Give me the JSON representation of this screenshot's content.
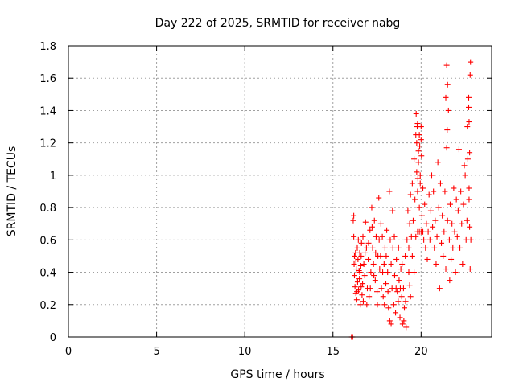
{
  "chart_data": {
    "type": "scatter",
    "title": "Day 222 of 2025, SRMTID for receiver nabg",
    "xlabel": "GPS time / hours",
    "ylabel": "SRMTID / TECUs",
    "xlim": [
      0,
      24
    ],
    "ylim": [
      0,
      1.8
    ],
    "x_ticks": [
      0,
      5,
      10,
      15,
      20
    ],
    "x_tick_labels": [
      "0",
      "5",
      "10",
      "15",
      "20"
    ],
    "y_ticks": [
      0,
      0.2,
      0.4,
      0.6,
      0.8,
      1.0,
      1.2,
      1.4,
      1.6,
      1.8
    ],
    "y_tick_labels": [
      "0",
      "0.2",
      "0.4",
      "0.6",
      "0.8",
      "1",
      "1.2",
      "1.4",
      "1.6",
      "1.8"
    ],
    "grid": true,
    "marker": "plus",
    "marker_color": "#ff0000",
    "points": [
      [
        16.05,
        0.0
      ],
      [
        16.08,
        0.0
      ],
      [
        16.12,
        0.0
      ],
      [
        16.15,
        0.72
      ],
      [
        16.18,
        0.62
      ],
      [
        16.2,
        0.45
      ],
      [
        16.22,
        0.38
      ],
      [
        16.25,
        0.31
      ],
      [
        16.28,
        0.52
      ],
      [
        16.3,
        0.27
      ],
      [
        16.32,
        0.42
      ],
      [
        16.35,
        0.23
      ],
      [
        16.38,
        0.55
      ],
      [
        16.4,
        0.34
      ],
      [
        16.42,
        0.48
      ],
      [
        16.45,
        0.29
      ],
      [
        16.48,
        0.41
      ],
      [
        16.5,
        0.36
      ],
      [
        16.52,
        0.52
      ],
      [
        16.55,
        0.2
      ],
      [
        16.58,
        0.44
      ],
      [
        16.6,
        0.31
      ],
      [
        16.62,
        0.58
      ],
      [
        16.65,
        0.26
      ],
      [
        16.18,
        0.75
      ],
      [
        16.22,
        0.5
      ],
      [
        16.3,
        0.47
      ],
      [
        16.36,
        0.28
      ],
      [
        16.44,
        0.6
      ],
      [
        16.52,
        0.4
      ],
      [
        16.6,
        0.5
      ],
      [
        16.68,
        0.33
      ],
      [
        16.7,
        0.62
      ],
      [
        16.75,
        0.45
      ],
      [
        16.8,
        0.38
      ],
      [
        16.85,
        0.71
      ],
      [
        16.9,
        0.55
      ],
      [
        16.95,
        0.3
      ],
      [
        17.0,
        0.48
      ],
      [
        17.05,
        0.25
      ],
      [
        17.1,
        0.66
      ],
      [
        17.15,
        0.4
      ],
      [
        16.72,
        0.22
      ],
      [
        16.82,
        0.52
      ],
      [
        16.92,
        0.2
      ],
      [
        17.02,
        0.58
      ],
      [
        17.12,
        0.3
      ],
      [
        17.2,
        0.8
      ],
      [
        17.25,
        0.55
      ],
      [
        17.3,
        0.45
      ],
      [
        17.35,
        0.72
      ],
      [
        17.4,
        0.35
      ],
      [
        17.45,
        0.62
      ],
      [
        17.5,
        0.28
      ],
      [
        17.55,
        0.5
      ],
      [
        17.6,
        0.86
      ],
      [
        17.65,
        0.42
      ],
      [
        17.22,
        0.68
      ],
      [
        17.32,
        0.38
      ],
      [
        17.42,
        0.52
      ],
      [
        17.52,
        0.2
      ],
      [
        17.62,
        0.6
      ],
      [
        17.7,
        0.5
      ],
      [
        17.75,
        0.3
      ],
      [
        17.8,
        0.62
      ],
      [
        17.85,
        0.25
      ],
      [
        17.9,
        0.45
      ],
      [
        17.95,
        0.55
      ],
      [
        18.0,
        0.33
      ],
      [
        18.05,
        0.66
      ],
      [
        18.1,
        0.4
      ],
      [
        18.15,
        0.18
      ],
      [
        17.72,
        0.7
      ],
      [
        17.82,
        0.4
      ],
      [
        17.92,
        0.2
      ],
      [
        18.02,
        0.5
      ],
      [
        18.12,
        0.28
      ],
      [
        18.2,
        0.9
      ],
      [
        18.25,
        0.6
      ],
      [
        18.3,
        0.45
      ],
      [
        18.35,
        0.3
      ],
      [
        18.4,
        0.55
      ],
      [
        18.45,
        0.2
      ],
      [
        18.5,
        0.38
      ],
      [
        18.55,
        0.15
      ],
      [
        18.6,
        0.48
      ],
      [
        18.65,
        0.28
      ],
      [
        18.22,
        0.1
      ],
      [
        18.3,
        0.08
      ],
      [
        18.38,
        0.78
      ],
      [
        18.48,
        0.62
      ],
      [
        18.58,
        0.3
      ],
      [
        18.7,
        0.22
      ],
      [
        18.75,
        0.35
      ],
      [
        18.8,
        0.12
      ],
      [
        18.85,
        0.42
      ],
      [
        18.9,
        0.25
      ],
      [
        18.95,
        0.08
      ],
      [
        19.0,
        0.3
      ],
      [
        19.05,
        0.18
      ],
      [
        19.1,
        0.5
      ],
      [
        19.15,
        0.06
      ],
      [
        18.72,
        0.55
      ],
      [
        18.82,
        0.3
      ],
      [
        18.92,
        0.45
      ],
      [
        19.02,
        0.1
      ],
      [
        19.12,
        0.22
      ],
      [
        19.2,
        0.6
      ],
      [
        19.25,
        0.78
      ],
      [
        19.3,
        0.55
      ],
      [
        19.35,
        0.7
      ],
      [
        19.4,
        0.88
      ],
      [
        19.45,
        0.62
      ],
      [
        19.5,
        0.95
      ],
      [
        19.55,
        0.72
      ],
      [
        19.6,
        1.1
      ],
      [
        19.65,
        0.85
      ],
      [
        19.7,
        1.25
      ],
      [
        19.72,
        1.38
      ],
      [
        19.75,
        1.02
      ],
      [
        19.78,
        1.3
      ],
      [
        19.8,
        0.9
      ],
      [
        19.85,
        1.15
      ],
      [
        19.9,
        0.8
      ],
      [
        19.95,
        1.0
      ],
      [
        20.0,
        1.22
      ],
      [
        20.05,
        0.75
      ],
      [
        20.1,
        0.92
      ],
      [
        20.15,
        0.6
      ],
      [
        20.2,
        0.82
      ],
      [
        20.25,
        0.55
      ],
      [
        20.3,
        0.7
      ],
      [
        20.35,
        0.48
      ],
      [
        20.4,
        0.65
      ],
      [
        20.45,
        0.88
      ],
      [
        20.5,
        0.6
      ],
      [
        20.55,
        0.78
      ],
      [
        20.6,
        1.0
      ],
      [
        20.65,
        0.68
      ],
      [
        20.7,
        0.9
      ],
      [
        20.75,
        0.55
      ],
      [
        20.8,
        0.72
      ],
      [
        20.85,
        0.45
      ],
      [
        20.9,
        0.62
      ],
      [
        20.95,
        1.08
      ],
      [
        21.0,
        0.8
      ],
      [
        21.05,
        0.3
      ],
      [
        21.1,
        0.95
      ],
      [
        21.15,
        0.58
      ],
      [
        21.2,
        0.75
      ],
      [
        21.25,
        0.5
      ],
      [
        21.3,
        0.65
      ],
      [
        21.35,
        0.9
      ],
      [
        21.4,
        0.42
      ],
      [
        21.45,
        1.17
      ],
      [
        21.5,
        0.72
      ],
      [
        21.55,
        1.4
      ],
      [
        21.6,
        0.6
      ],
      [
        21.62,
        0.35
      ],
      [
        21.65,
        0.82
      ],
      [
        21.7,
        0.48
      ],
      [
        21.75,
        0.7
      ],
      [
        21.8,
        0.55
      ],
      [
        21.85,
        0.92
      ],
      [
        21.9,
        0.65
      ],
      [
        21.95,
        0.4
      ],
      [
        22.0,
        0.85
      ],
      [
        22.05,
        0.62
      ],
      [
        22.1,
        0.78
      ],
      [
        22.15,
        1.16
      ],
      [
        22.2,
        0.55
      ],
      [
        22.25,
        0.9
      ],
      [
        22.3,
        0.7
      ],
      [
        22.35,
        0.45
      ],
      [
        22.4,
        0.82
      ],
      [
        22.45,
        1.06
      ],
      [
        22.5,
        1.0
      ],
      [
        22.55,
        0.6
      ],
      [
        22.6,
        0.72
      ],
      [
        22.62,
        1.3
      ],
      [
        22.65,
        1.1
      ],
      [
        22.7,
        1.42
      ],
      [
        22.72,
        0.85
      ],
      [
        22.75,
        0.68
      ],
      [
        22.78,
        1.62
      ],
      [
        22.8,
        1.7
      ],
      [
        22.82,
        0.6
      ],
      [
        21.4,
        1.48
      ],
      [
        21.45,
        1.68
      ],
      [
        21.48,
        1.28
      ],
      [
        21.5,
        1.56
      ],
      [
        22.7,
        1.48
      ],
      [
        22.72,
        1.33
      ],
      [
        22.75,
        1.14
      ],
      [
        22.78,
        0.42
      ],
      [
        22.72,
        0.92
      ],
      [
        19.75,
        1.2
      ],
      [
        19.8,
        1.32
      ],
      [
        19.85,
        1.08
      ],
      [
        19.9,
        1.25
      ],
      [
        19.95,
        0.95
      ],
      [
        20.0,
        1.3
      ],
      [
        20.02,
        1.12
      ],
      [
        19.82,
        0.98
      ],
      [
        19.92,
        1.18
      ],
      [
        19.3,
        0.4
      ],
      [
        19.35,
        0.32
      ],
      [
        19.4,
        0.25
      ],
      [
        19.5,
        0.5
      ],
      [
        19.6,
        0.4
      ],
      [
        19.7,
        0.62
      ],
      [
        19.8,
        0.65
      ],
      [
        19.9,
        0.65
      ],
      [
        20.0,
        0.65
      ],
      [
        20.1,
        0.65
      ]
    ]
  }
}
